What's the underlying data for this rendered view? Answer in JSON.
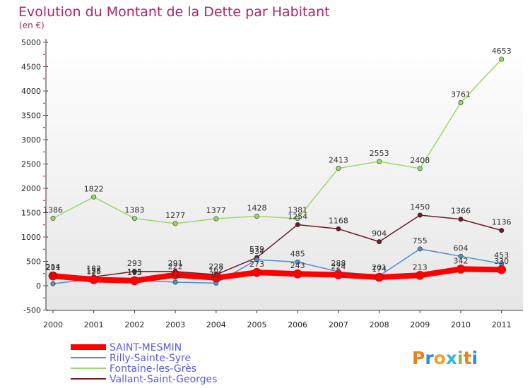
{
  "title": "Evolution du Montant de la Dette par Habitant",
  "subtitle": "(en €)",
  "logo": "Proxiti",
  "chart_data": {
    "type": "line",
    "x": [
      "2000",
      "2001",
      "2002",
      "2003",
      "2004",
      "2005",
      "2006",
      "2007",
      "2008",
      "2009",
      "2010",
      "2011"
    ],
    "ylim": [
      -500,
      5000
    ],
    "yticks": [
      -500,
      0,
      500,
      1000,
      1500,
      2000,
      2500,
      3000,
      3500,
      4000,
      4500,
      5000
    ],
    "grid": false,
    "legend_position": "bottom-left",
    "series": [
      {
        "name": "Vallant-Saint-Georges",
        "color": "#6e1a24",
        "values": [
          214,
          182,
          293,
          291,
          228,
          579,
          1254,
          1168,
          904,
          1450,
          1366,
          1136
        ]
      },
      {
        "name": "Fontaine-les-Grès",
        "color": "#99d86a",
        "values": [
          1386,
          1822,
          1383,
          1277,
          1377,
          1428,
          1381,
          2413,
          2553,
          2408,
          3761,
          4653
        ]
      },
      {
        "name": "Rilly-Sainte-Syre",
        "color": "#4d8fcc",
        "values": [
          41,
          138,
          115,
          72,
          52,
          534,
          485,
          288,
          201,
          755,
          604,
          453
        ]
      },
      {
        "name": "SAINT-MESMIN",
        "color": "#ff0000",
        "values": [
          201,
          125,
          103,
          222,
          162,
          273,
          243,
          224,
          174,
          213,
          342,
          330
        ]
      }
    ]
  }
}
